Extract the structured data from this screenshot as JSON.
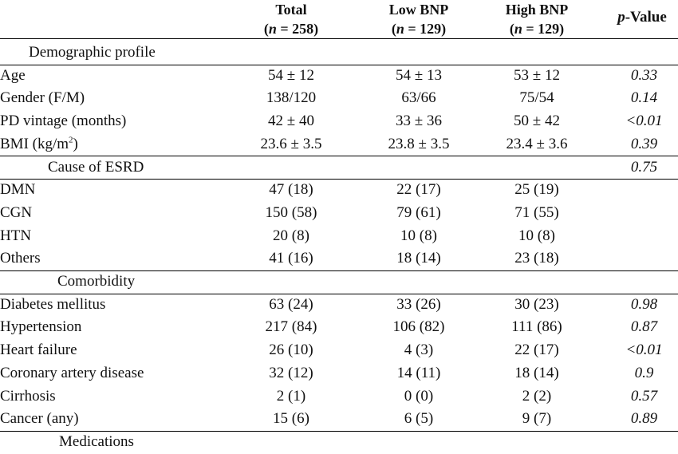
{
  "header": {
    "total": {
      "label": "Total",
      "n_prefix": "n",
      "n_suffix": " = 258)"
    },
    "low": {
      "label": "Low BNP",
      "n_prefix": "n",
      "n_suffix": " = 129)"
    },
    "high": {
      "label": "High BNP",
      "n_prefix": "n",
      "n_suffix": " = 129)"
    },
    "pvalue": {
      "italic": "p",
      "rest": "-Value"
    }
  },
  "rows": [
    {
      "type": "section",
      "label": "Demographic profile",
      "indent": 36,
      "total": "",
      "low": "",
      "high": "",
      "p": "",
      "sep": true
    },
    {
      "type": "data",
      "label": "Age",
      "total": "54 ± 12",
      "low": "54 ± 13",
      "high": "53 ± 12",
      "p": "0.33"
    },
    {
      "type": "data",
      "label": "Gender (F/M)",
      "total": "138/120",
      "low": "63/66",
      "high": "75/54",
      "p": "0.14"
    },
    {
      "type": "data",
      "label": "PD vintage (months)",
      "total": "42 ± 40",
      "low": "33 ± 36",
      "high": "50 ± 42",
      "p": "<0.01"
    },
    {
      "type": "data",
      "label": "BMI (kg/m",
      "label_sup": "2",
      "label_after": ")",
      "total": "23.6 ± 3.5",
      "low": "23.8 ± 3.5",
      "high": "23.4 ± 3.6",
      "p": "0.39",
      "sep": true
    },
    {
      "type": "section",
      "label": "Cause of ESRD",
      "indent": 60,
      "total": "",
      "low": "",
      "high": "",
      "p": "0.75",
      "sep": true
    },
    {
      "type": "data",
      "label": "DMN",
      "total": "47 (18)",
      "low": "22 (17)",
      "high": "25 (19)",
      "p": ""
    },
    {
      "type": "data",
      "label": "CGN",
      "total": "150 (58)",
      "low": "79 (61)",
      "high": "71 (55)",
      "p": ""
    },
    {
      "type": "data",
      "label": "HTN",
      "total": "20 (8)",
      "low": "10 (8)",
      "high": "10 (8)",
      "p": ""
    },
    {
      "type": "data",
      "label": "Others",
      "total": "41 (16)",
      "low": "18 (14)",
      "high": "23 (18)",
      "p": "",
      "sep": true
    },
    {
      "type": "section",
      "label": "Comorbidity",
      "indent": 72,
      "total": "",
      "low": "",
      "high": "",
      "p": "",
      "sep": true
    },
    {
      "type": "data",
      "label": "Diabetes mellitus",
      "total": "63 (24)",
      "low": "33 (26)",
      "high": "30 (23)",
      "p": "0.98"
    },
    {
      "type": "data",
      "label": "Hypertension",
      "total": "217 (84)",
      "low": "106 (82)",
      "high": "111 (86)",
      "p": "0.87"
    },
    {
      "type": "data",
      "label": "Heart failure",
      "total": "26 (10)",
      "low": "4 (3)",
      "high": "22 (17)",
      "p": "<0.01"
    },
    {
      "type": "data",
      "label": "Coronary artery disease",
      "total": "32 (12)",
      "low": "14 (11)",
      "high": "18 (14)",
      "p": "0.9"
    },
    {
      "type": "data",
      "label": "Cirrhosis",
      "total": "2 (1)",
      "low": "0 (0)",
      "high": "2 (2)",
      "p": "0.57"
    },
    {
      "type": "data",
      "label": "Cancer (any)",
      "total": "15 (6)",
      "low": "6 (5)",
      "high": "9 (7)",
      "p": "0.89",
      "sep": true
    },
    {
      "type": "section",
      "label": "Medications",
      "indent": 74,
      "total": "",
      "low": "",
      "high": "",
      "p": ""
    }
  ]
}
